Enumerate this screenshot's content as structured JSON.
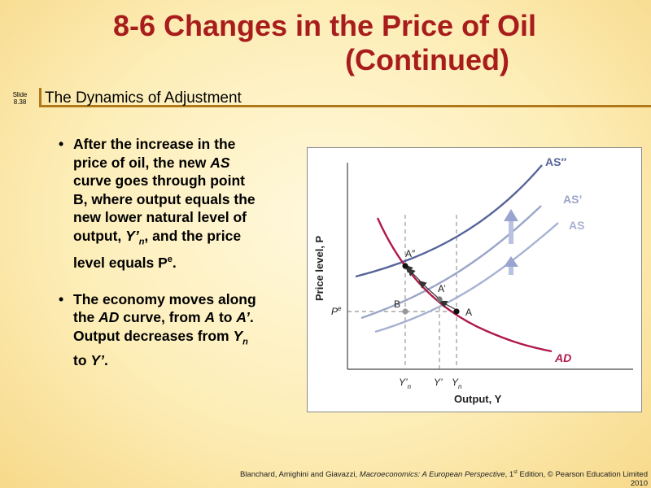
{
  "title": {
    "line1": "8-6  Changes in the Price of Oil",
    "line2": "(Continued)"
  },
  "slide_number": {
    "label": "Slide",
    "value": "8.38"
  },
  "subtitle": "The Dynamics of Adjustment",
  "bullets": [
    {
      "segments": [
        {
          "text": "After the increase in the price of oil, the new "
        },
        {
          "text": "AS",
          "italic": true
        },
        {
          "text": " curve goes through point B, where output equals the new lower natural level of output, "
        },
        {
          "text": "Y’",
          "italic": true
        },
        {
          "text": "n",
          "italic": true,
          "sub": true
        },
        {
          "text": ", and the price level equals P"
        },
        {
          "text": "e",
          "sup": true
        },
        {
          "text": "."
        }
      ]
    },
    {
      "segments": [
        {
          "text": "The economy moves along the "
        },
        {
          "text": "AD",
          "italic": true
        },
        {
          "text": " curve, from "
        },
        {
          "text": "A",
          "italic": true
        },
        {
          "text": " to "
        },
        {
          "text": "A’",
          "italic": true
        },
        {
          "text": ". Output decreases from "
        },
        {
          "text": "Y",
          "italic": true
        },
        {
          "text": "n",
          "italic": true,
          "sub": true
        },
        {
          "text": " to "
        },
        {
          "text": "Y’",
          "italic": true
        },
        {
          "text": "."
        }
      ]
    }
  ],
  "diagram": {
    "y_axis_label": "Price level, P",
    "x_axis_label": "Output, Y",
    "curves": {
      "as2": "AS″",
      "as1": "AS’",
      "as0": "AS",
      "ad": "AD"
    },
    "points": {
      "a2": "A″",
      "a1": "A’",
      "a": "A",
      "b": "B"
    },
    "pe_label": "P",
    "pe_sup": "e",
    "ticks": {
      "yn_prime": "Y’",
      "yn_prime_sub": "n",
      "y_prime": "Y’",
      "yn": "Y",
      "yn_sub": "n"
    },
    "colors": {
      "ad": "#b0184a",
      "as2": "#56649a",
      "as1": "#9aa5c8",
      "as0": "#a7b1d1",
      "arrow": "#9aa5cf"
    }
  },
  "footer": {
    "authors": "Blanchard, Amighini and Giavazzi, ",
    "book": "Macroeconomics: A European Perspective",
    "edition_num": ", 1",
    "edition_sup": "st",
    "rest": " Edition, © Pearson Education Limited 2010"
  }
}
